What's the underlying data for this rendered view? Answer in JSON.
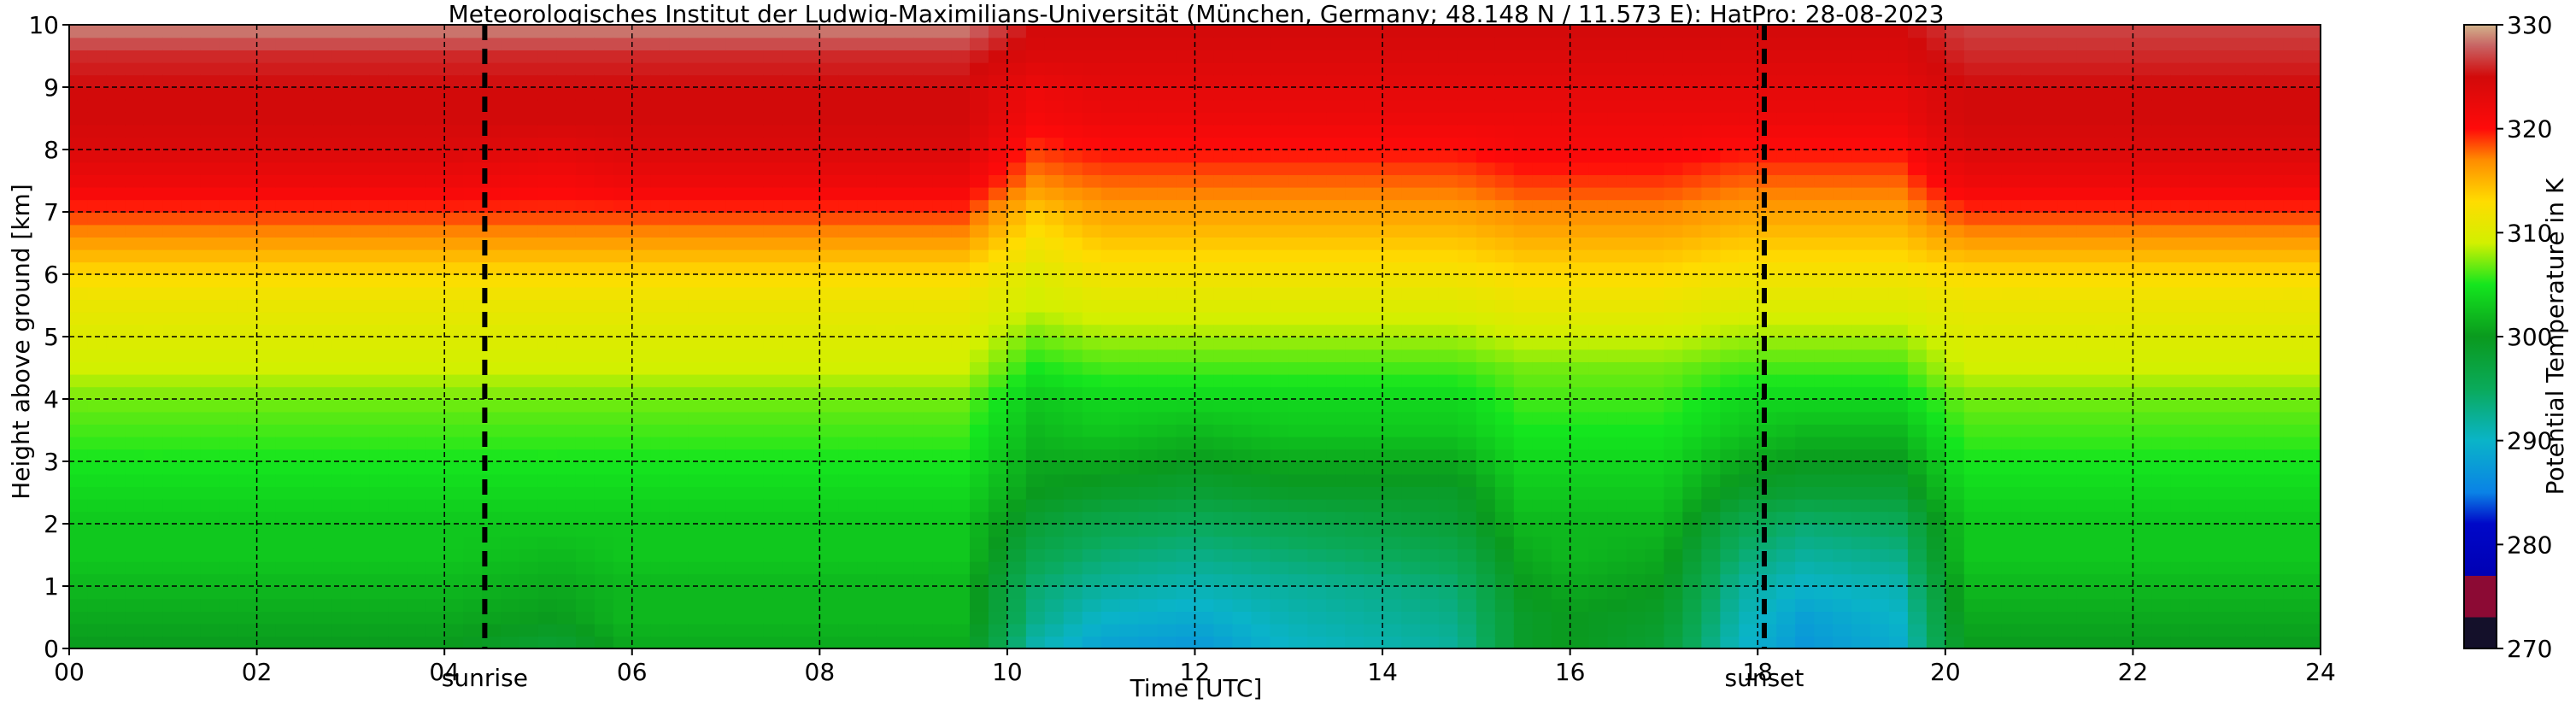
{
  "chart_data": {
    "type": "heatmap",
    "title": "Meteorologisches Institut der Ludwig-Maximilians-Universität (München, Germany; 48.148 N / 11.573 E):    HatPro: 28-08-2023",
    "xlabel": "Time [UTC]",
    "ylabel": "Height above ground [km]",
    "xlim": [
      0,
      24
    ],
    "ylim": [
      0,
      10
    ],
    "x_ticks": [
      0,
      2,
      4,
      6,
      8,
      10,
      12,
      14,
      16,
      18,
      20,
      22,
      24
    ],
    "x_tick_labels": [
      "00",
      "02",
      "04",
      "06",
      "08",
      "10",
      "12",
      "14",
      "16",
      "18",
      "20",
      "22",
      "24"
    ],
    "y_ticks": [
      0,
      1,
      2,
      3,
      4,
      5,
      6,
      7,
      8,
      9,
      10
    ],
    "y_tick_labels": [
      "0",
      "1",
      "2",
      "3",
      "4",
      "5",
      "6",
      "7",
      "8",
      "9",
      "10"
    ],
    "grid": true,
    "colorbar": {
      "label": "Potential Temperature in K",
      "range": [
        270,
        330
      ],
      "ticks": [
        270,
        280,
        290,
        300,
        310,
        320,
        330
      ],
      "tick_labels": [
        "270",
        "280",
        "290",
        "300",
        "310",
        "320",
        "330"
      ],
      "stops": [
        {
          "value": 270,
          "color": "#14102a"
        },
        {
          "value": 273,
          "color": "#14102a"
        },
        {
          "value": 273,
          "color": "#8c0a34"
        },
        {
          "value": 277,
          "color": "#8c0a34"
        },
        {
          "value": 277,
          "color": "#0000b4"
        },
        {
          "value": 282,
          "color": "#0008c8"
        },
        {
          "value": 285,
          "color": "#0a82e6"
        },
        {
          "value": 290,
          "color": "#0ab4c8"
        },
        {
          "value": 295,
          "color": "#0aaa5a"
        },
        {
          "value": 300,
          "color": "#0a9a1e"
        },
        {
          "value": 305,
          "color": "#14e61e"
        },
        {
          "value": 309,
          "color": "#d2f000"
        },
        {
          "value": 313,
          "color": "#ffdc00"
        },
        {
          "value": 317,
          "color": "#ff8c00"
        },
        {
          "value": 320,
          "color": "#ff0a0a"
        },
        {
          "value": 325,
          "color": "#d20a0a"
        },
        {
          "value": 328,
          "color": "#c86464"
        },
        {
          "value": 330,
          "color": "#d2b48c"
        }
      ]
    },
    "events": [
      {
        "label": "sunrise",
        "time": 4.43
      },
      {
        "label": "sunset",
        "time": 18.07
      }
    ],
    "profile_heights_km": [
      0,
      0.5,
      1.0,
      1.5,
      2.0,
      2.5,
      3.0,
      3.5,
      4.0,
      4.5,
      5.0,
      5.5,
      6.0,
      6.5,
      7.0,
      7.5,
      8.0,
      8.5,
      9.0,
      9.5,
      10.0
    ],
    "profile_times_utc": [
      0,
      2,
      4,
      5.2,
      6,
      8,
      9.5,
      10.3,
      11,
      12,
      13,
      14,
      14.8,
      15.5,
      16,
      17,
      17.8,
      18.5,
      19.5,
      20.2,
      22,
      24
    ],
    "theta_K": [
      [
        300,
        301,
        302,
        303,
        303,
        304,
        305,
        306,
        307,
        309,
        310,
        311,
        313,
        316,
        319,
        322,
        324,
        325,
        325,
        326,
        329
      ],
      [
        300,
        301,
        302,
        303,
        303,
        304,
        305,
        306,
        307,
        309,
        310,
        311,
        313,
        316,
        319,
        322,
        324,
        325,
        325,
        326,
        329
      ],
      [
        300,
        301,
        302,
        303,
        303,
        304,
        305,
        306,
        307,
        309,
        310,
        311,
        313,
        316,
        319,
        322,
        324,
        325,
        325,
        326,
        329
      ],
      [
        298,
        300,
        301,
        302,
        303,
        304,
        305,
        306,
        307,
        309,
        310,
        311,
        313,
        316,
        319,
        321,
        323,
        325,
        325,
        326,
        329
      ],
      [
        301,
        302,
        302,
        303,
        303,
        304,
        305,
        306,
        307,
        309,
        310,
        311,
        313,
        316,
        319,
        322,
        324,
        325,
        325,
        326,
        329
      ],
      [
        301,
        302,
        302,
        303,
        303,
        304,
        305,
        306,
        307,
        309,
        310,
        311,
        313,
        316,
        319,
        322,
        324,
        325,
        325,
        326,
        329
      ],
      [
        301,
        302,
        302,
        303,
        303,
        304,
        305,
        306,
        307,
        309,
        310,
        311,
        313,
        316,
        319,
        322,
        324,
        325,
        325,
        326,
        329
      ],
      [
        291,
        293,
        294,
        296,
        298,
        300,
        301,
        302,
        303,
        305,
        307,
        309,
        310,
        312,
        314,
        317,
        319,
        321,
        322,
        324,
        325
      ],
      [
        288,
        290,
        292,
        294,
        296,
        299,
        301,
        303,
        304,
        306,
        308,
        310,
        312,
        314,
        316,
        318,
        320,
        322,
        323,
        324,
        325
      ],
      [
        287,
        289,
        291,
        293,
        295,
        298,
        300,
        302,
        304,
        306,
        308,
        310,
        312,
        314,
        316,
        318,
        320,
        322,
        323,
        324,
        325
      ],
      [
        290,
        291,
        292,
        294,
        296,
        299,
        301,
        303,
        304,
        306,
        308,
        310,
        312,
        314,
        316,
        318,
        320,
        322,
        323,
        324,
        325
      ],
      [
        291,
        292,
        293,
        295,
        297,
        299,
        301,
        303,
        304,
        306,
        308,
        310,
        312,
        314,
        316,
        318,
        320,
        322,
        323,
        324,
        325
      ],
      [
        292,
        293,
        294,
        296,
        298,
        299,
        301,
        303,
        304,
        306,
        308,
        310,
        312,
        314,
        316,
        318,
        320,
        322,
        323,
        324,
        325
      ],
      [
        299,
        299,
        300,
        301,
        302,
        303,
        304,
        305,
        306,
        307,
        309,
        311,
        313,
        315,
        317,
        319,
        321,
        322,
        323,
        324,
        325
      ],
      [
        300,
        300,
        301,
        302,
        302,
        303,
        304,
        305,
        306,
        307,
        309,
        311,
        313,
        315,
        317,
        319,
        321,
        322,
        323,
        324,
        325
      ],
      [
        298,
        299,
        300,
        301,
        302,
        303,
        304,
        305,
        306,
        307,
        309,
        311,
        313,
        315,
        317,
        319,
        321,
        322,
        323,
        324,
        325
      ],
      [
        290,
        291,
        292,
        294,
        296,
        299,
        301,
        303,
        304,
        306,
        308,
        310,
        312,
        314,
        316,
        318,
        320,
        322,
        323,
        324,
        325
      ],
      [
        287,
        288,
        290,
        292,
        294,
        298,
        300,
        302,
        304,
        306,
        308,
        310,
        312,
        314,
        316,
        318,
        320,
        322,
        323,
        324,
        325
      ],
      [
        289,
        290,
        291,
        293,
        295,
        298,
        300,
        302,
        304,
        306,
        308,
        310,
        312,
        314,
        316,
        318,
        320,
        322,
        323,
        324,
        325
      ],
      [
        300,
        301,
        302,
        303,
        303,
        304,
        305,
        306,
        307,
        309,
        310,
        311,
        313,
        316,
        319,
        322,
        324,
        325,
        325,
        326,
        327
      ],
      [
        300,
        301,
        302,
        303,
        303,
        304,
        305,
        306,
        307,
        309,
        310,
        311,
        313,
        316,
        319,
        322,
        324,
        325,
        325,
        326,
        327
      ],
      [
        300,
        301,
        302,
        303,
        303,
        304,
        305,
        306,
        307,
        309,
        310,
        311,
        313,
        316,
        319,
        322,
        324,
        325,
        325,
        326,
        327
      ]
    ]
  }
}
